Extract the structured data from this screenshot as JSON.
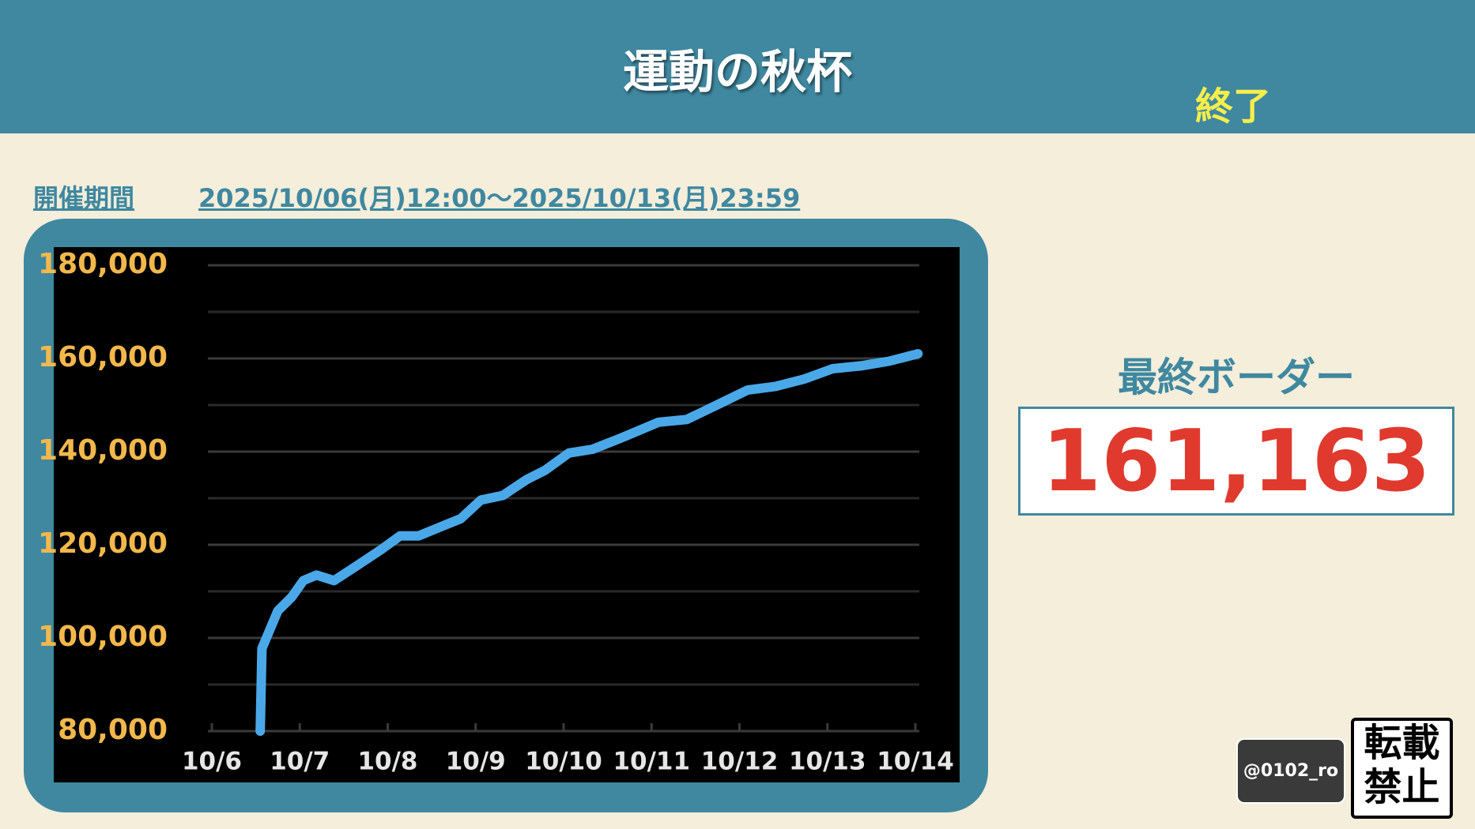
{
  "header": {
    "title": "運動の秋杯",
    "status": "終了"
  },
  "period": {
    "label": "開催期間",
    "range": "2025/10/06(月)12:00〜2025/10/13(月)23:59"
  },
  "chart_data": {
    "type": "line",
    "color": "#4aa8e8",
    "x": [
      6.55,
      6.57,
      6.75,
      6.91,
      7.04,
      7.19,
      7.39,
      7.6,
      7.92,
      8.14,
      8.35,
      8.62,
      8.83,
      9.06,
      9.31,
      9.58,
      9.79,
      10.06,
      10.33,
      10.65,
      11.08,
      11.4,
      11.72,
      12.09,
      12.41,
      12.74,
      13.06,
      13.38,
      13.7,
      14.03
    ],
    "values": [
      80000,
      97750,
      105800,
      108800,
      112300,
      113500,
      112300,
      114900,
      118900,
      121900,
      121900,
      124000,
      125600,
      129600,
      130600,
      134000,
      136000,
      139700,
      140500,
      142900,
      146300,
      146900,
      149800,
      153200,
      154000,
      155600,
      157800,
      158400,
      159400,
      161000
    ],
    "xlim": [
      6,
      14
    ],
    "xticks": [
      {
        "value": 6,
        "label": "10/6"
      },
      {
        "value": 7,
        "label": "10/7"
      },
      {
        "value": 8,
        "label": "10/8"
      },
      {
        "value": 9,
        "label": "10/9"
      },
      {
        "value": 10,
        "label": "10/10"
      },
      {
        "value": 11,
        "label": "10/11"
      },
      {
        "value": 12,
        "label": "10/12"
      },
      {
        "value": 13,
        "label": "10/13"
      },
      {
        "value": 14,
        "label": "10/14"
      }
    ],
    "ylim": [
      80000,
      180000
    ],
    "yticks": [
      {
        "value": 80000,
        "label": "80,000"
      },
      {
        "value": 100000,
        "label": "100,000"
      },
      {
        "value": 120000,
        "label": "120,000"
      },
      {
        "value": 140000,
        "label": "140,000"
      },
      {
        "value": 160000,
        "label": "160,000"
      },
      {
        "value": 180000,
        "label": "180,000"
      }
    ],
    "grid": true,
    "minor_grid": true
  },
  "final": {
    "label": "最終ボーダー",
    "value": "161,163"
  },
  "credit": "@0102_ro",
  "no_repost": [
    "転載",
    "禁止"
  ]
}
